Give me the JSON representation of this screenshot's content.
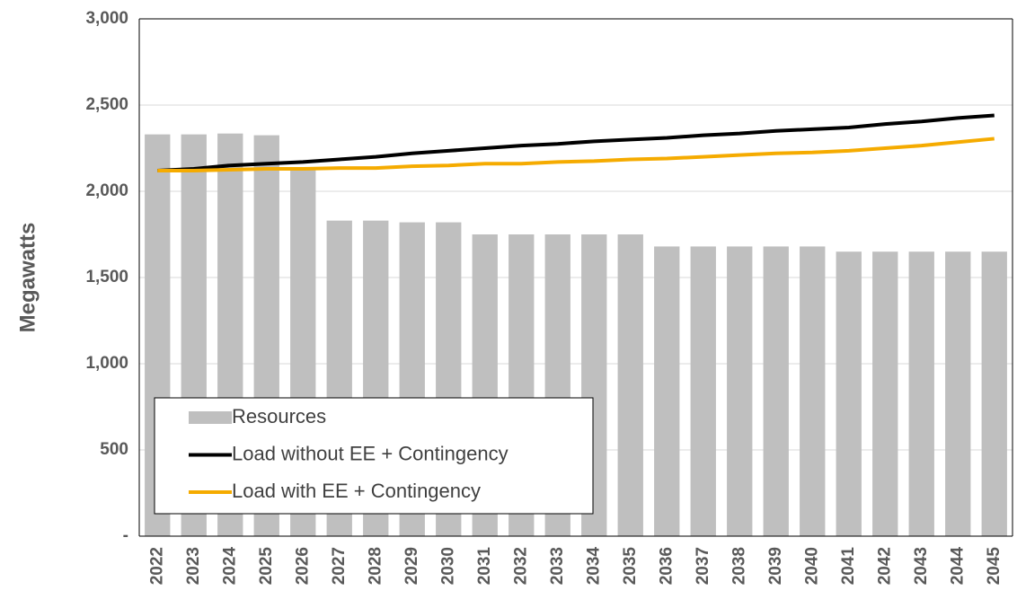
{
  "chart_data": {
    "type": "bar",
    "y_label": "Megawatts",
    "categories": [
      "2022",
      "2023",
      "2024",
      "2025",
      "2026",
      "2027",
      "2028",
      "2029",
      "2030",
      "2031",
      "2032",
      "2033",
      "2034",
      "2035",
      "2036",
      "2037",
      "2038",
      "2039",
      "2040",
      "2041",
      "2042",
      "2043",
      "2044",
      "2045"
    ],
    "series": [
      {
        "name": "Resources",
        "type": "bar",
        "color": "#bfbfbf",
        "values": [
          2330,
          2330,
          2335,
          2325,
          2130,
          1830,
          1830,
          1820,
          1820,
          1750,
          1750,
          1750,
          1750,
          1750,
          1680,
          1680,
          1680,
          1680,
          1680,
          1650,
          1650,
          1650,
          1650,
          1650
        ]
      },
      {
        "name": "Load without EE + Contingency",
        "type": "line",
        "color": "#000000",
        "values": [
          2120,
          2130,
          2150,
          2160,
          2170,
          2185,
          2200,
          2220,
          2235,
          2250,
          2265,
          2275,
          2290,
          2300,
          2310,
          2325,
          2335,
          2350,
          2360,
          2370,
          2390,
          2405,
          2425,
          2440
        ]
      },
      {
        "name": "Load with EE + Contingency",
        "type": "line",
        "color": "#f5ab00",
        "values": [
          2120,
          2120,
          2125,
          2130,
          2130,
          2135,
          2135,
          2145,
          2150,
          2160,
          2160,
          2170,
          2175,
          2185,
          2190,
          2200,
          2210,
          2220,
          2225,
          2235,
          2250,
          2265,
          2285,
          2305
        ]
      }
    ],
    "ylim": [
      0,
      3000
    ],
    "yticks": [
      {
        "value": 0,
        "label": "-"
      },
      500,
      {
        "value": 1000,
        "label": "1,000"
      },
      {
        "value": 1500,
        "label": "1,500"
      },
      {
        "value": 2000,
        "label": "2,000"
      },
      {
        "value": 2500,
        "label": "2,500"
      },
      {
        "value": 3000,
        "label": "3,000"
      }
    ],
    "grid": true,
    "legend": "lower-left"
  }
}
